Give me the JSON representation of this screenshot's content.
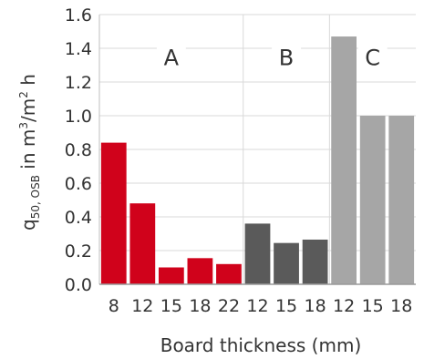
{
  "chart_data": {
    "type": "bar",
    "title": "",
    "xlabel": "Board thickness (mm)",
    "ylabel": {
      "q": "q",
      "sub": "50, OSB",
      "mid": " in m",
      "sup": "3",
      "tail": "/m",
      "sup2": "2",
      "end": " h"
    },
    "ylim": [
      0,
      1.6
    ],
    "yticks": [
      "0.0",
      "0.2",
      "0.4",
      "0.6",
      "0.8",
      "1.0",
      "1.2",
      "1.4",
      "1.6"
    ],
    "grid": true,
    "groups": [
      {
        "name": "A",
        "color": "#d0021b",
        "categories": [
          "8",
          "12",
          "15",
          "18",
          "22"
        ],
        "values": [
          0.84,
          0.48,
          0.1,
          0.155,
          0.12
        ]
      },
      {
        "name": "B",
        "color": "#5a5a5a",
        "categories": [
          "12",
          "15",
          "18"
        ],
        "values": [
          0.36,
          0.245,
          0.265
        ]
      },
      {
        "name": "C",
        "color": "#a6a6a6",
        "categories": [
          "12",
          "15",
          "18"
        ],
        "values": [
          1.47,
          1.0,
          1.0
        ]
      }
    ]
  }
}
